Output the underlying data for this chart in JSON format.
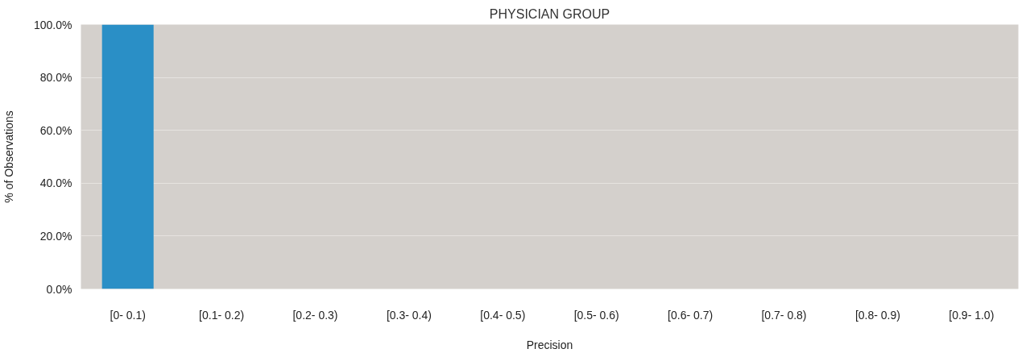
{
  "chart_data": {
    "type": "bar",
    "title": "PHYSICIAN GROUP",
    "xlabel": "Precision",
    "ylabel": "% of Observations",
    "categories": [
      "[0- 0.1)",
      "[0.1- 0.2)",
      "[0.2- 0.3)",
      "[0.3- 0.4)",
      "[0.4- 0.5)",
      "[0.5- 0.6)",
      "[0.6- 0.7)",
      "[0.7- 0.8)",
      "[0.8- 0.9)",
      "[0.9- 1.0)"
    ],
    "values": [
      100,
      0,
      0,
      0,
      0,
      0,
      0,
      0,
      0,
      0
    ],
    "color": "#2a8fc6",
    "ylim": [
      0,
      100
    ],
    "yticks": [
      {
        "value": 0,
        "label": "0.0%"
      },
      {
        "value": 20,
        "label": "20.0%"
      },
      {
        "value": 40,
        "label": "40.0%"
      },
      {
        "value": 60,
        "label": "60.0%"
      },
      {
        "value": 80,
        "label": "80.0%"
      },
      {
        "value": 100,
        "label": "100.0%"
      }
    ],
    "grid": "y"
  }
}
